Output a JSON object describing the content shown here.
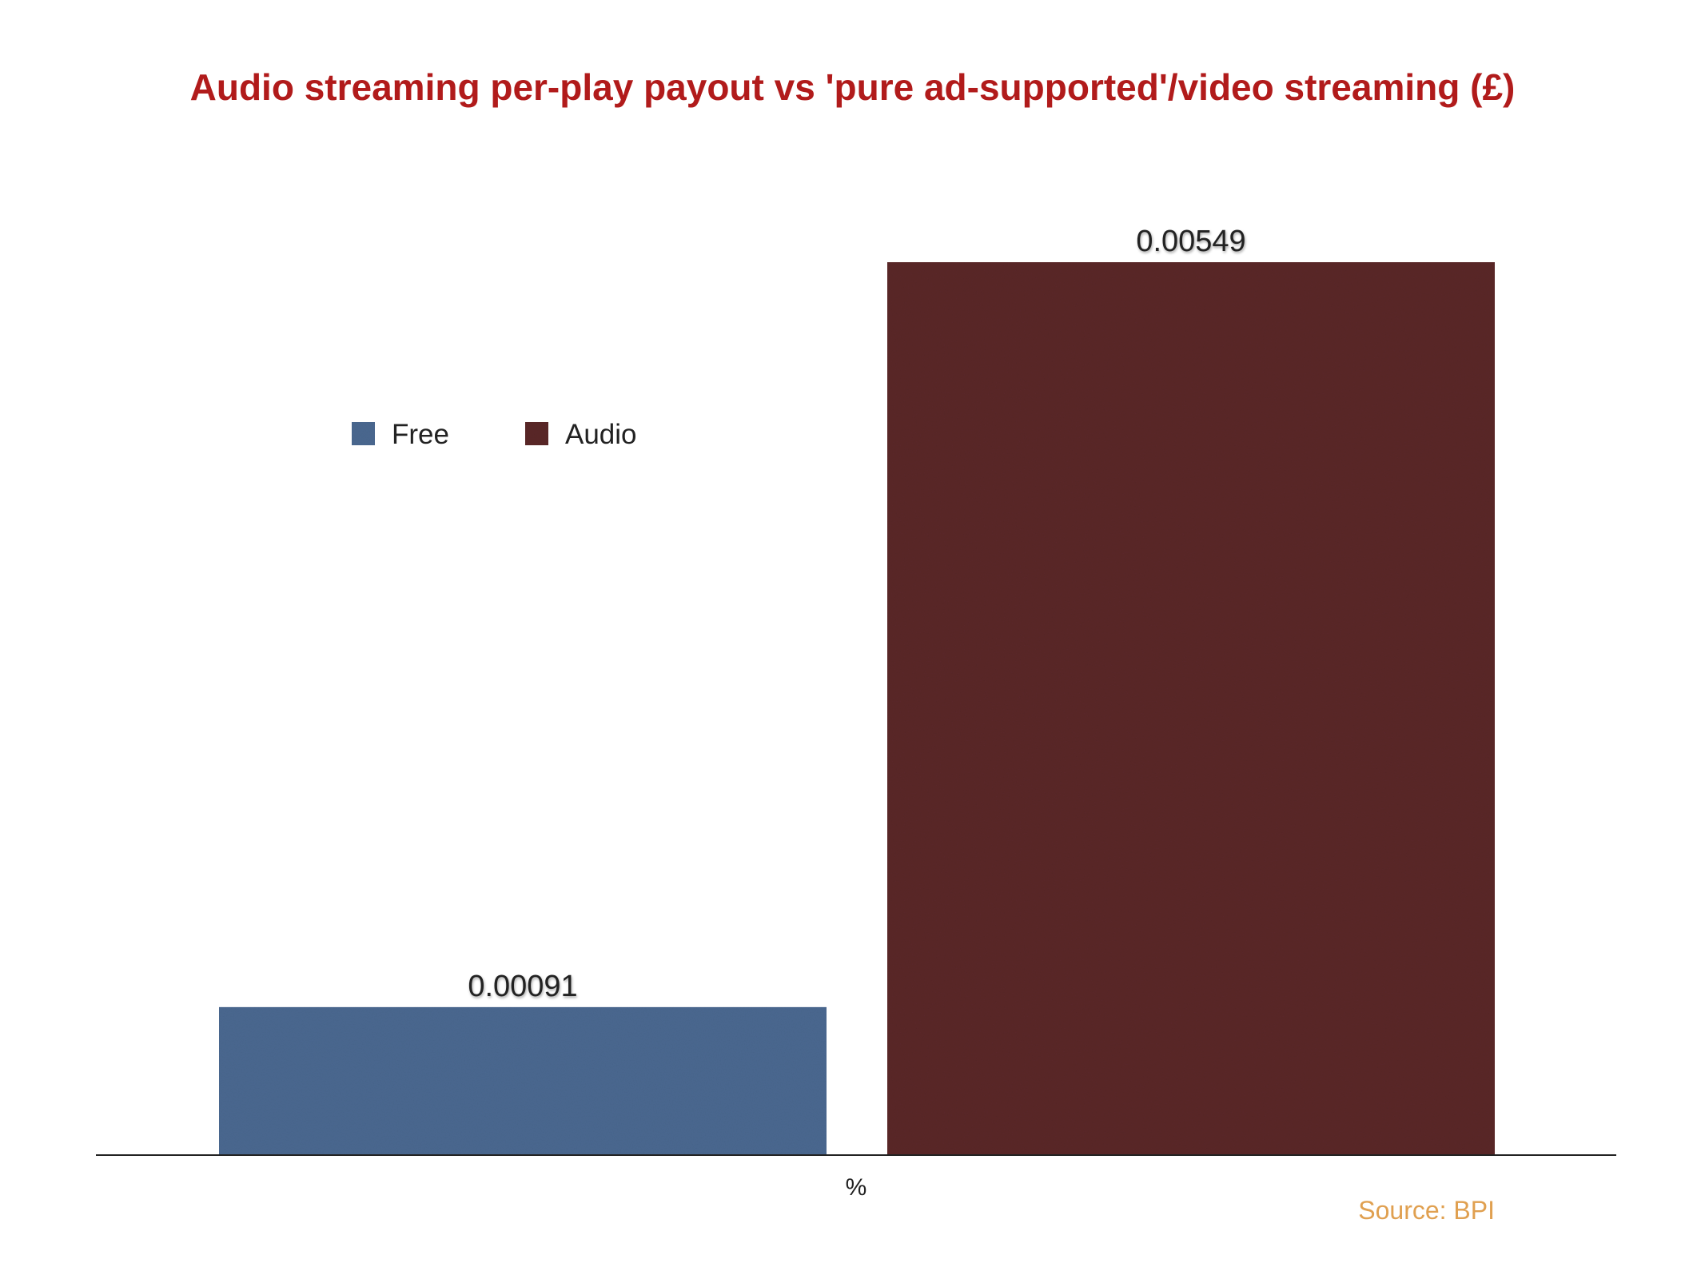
{
  "colors": {
    "title": "#b11b1b",
    "source": "#e0a050",
    "axis": "#222222"
  },
  "source_note": "Source: BPI",
  "chart_data": {
    "type": "bar",
    "title": "Audio streaming per-play payout vs 'pure ad-supported'/video streaming (£)",
    "categories": [
      "%"
    ],
    "xlabel": "",
    "ylabel": "",
    "ylim": [
      0,
      0.00549
    ],
    "grid": false,
    "legend_position": "top-left",
    "series": [
      {
        "name": "Free",
        "values": [
          0.00091
        ],
        "value_label": "0.00091",
        "color": "#4a6890"
      },
      {
        "name": "Audio",
        "values": [
          0.00549
        ],
        "value_label": "0.00549",
        "color": "#5a2629"
      }
    ]
  }
}
